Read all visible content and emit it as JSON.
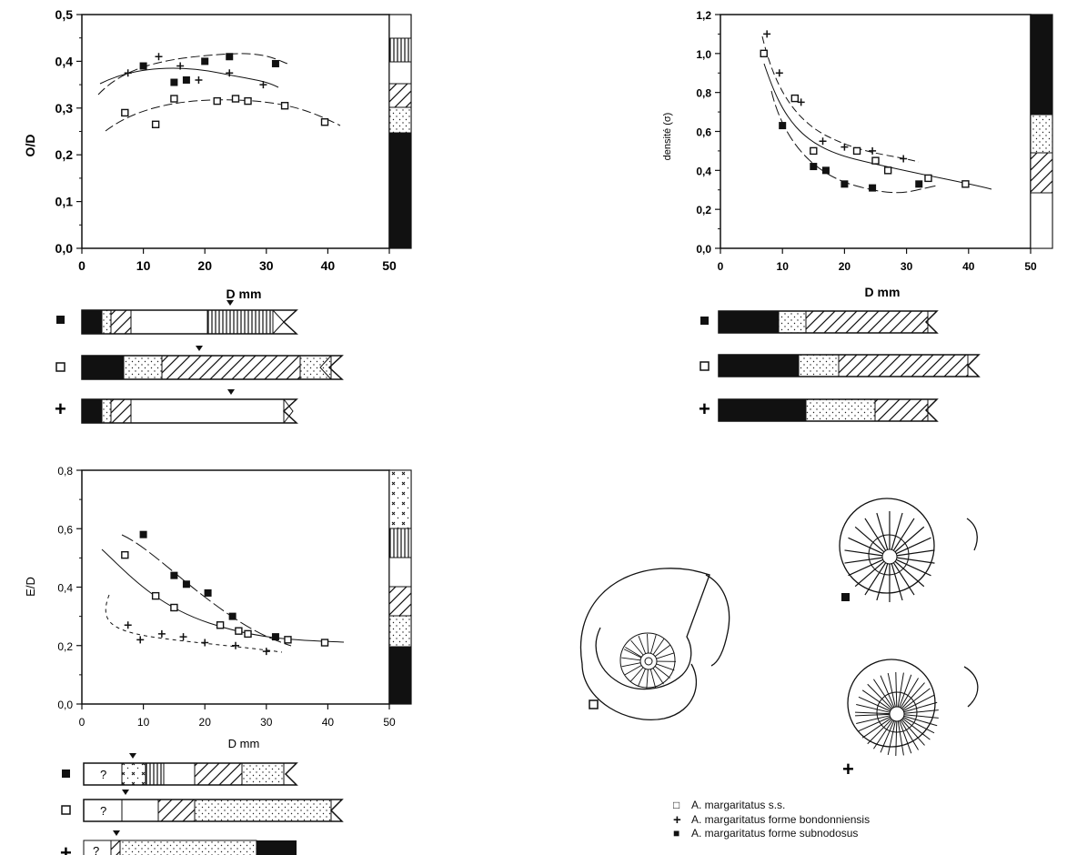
{
  "chart_data": [
    {
      "type": "scatter",
      "xlabel": "D mm",
      "ylabel": "O/D",
      "xlim": [
        0,
        50
      ],
      "ylim": [
        0,
        0.5
      ],
      "xticks": [
        "0",
        "10",
        "20",
        "30",
        "40",
        "50"
      ],
      "yticks": [
        "0,0",
        "0,1",
        "0,2",
        "0,3",
        "0,4",
        "0,5"
      ],
      "series": [
        {
          "name": "A. margaritatus forme subnodosus",
          "marker": "filled-square",
          "x": [
            10,
            15,
            17,
            20,
            24,
            31.5
          ],
          "y": [
            0.39,
            0.355,
            0.36,
            0.4,
            0.41,
            0.395
          ]
        },
        {
          "name": "A. margaritatus forme bondonniensis",
          "marker": "plus",
          "x": [
            7.5,
            12.5,
            16,
            19,
            24,
            29.5
          ],
          "y": [
            0.375,
            0.41,
            0.39,
            0.36,
            0.375,
            0.35
          ]
        },
        {
          "name": "A. margaritatus s.s.",
          "marker": "open-square",
          "x": [
            7,
            12,
            15,
            22,
            25,
            27,
            33,
            39.5
          ],
          "y": [
            0.29,
            0.265,
            0.32,
            0.315,
            0.32,
            0.315,
            0.305,
            0.27
          ]
        }
      ]
    },
    {
      "type": "scatter",
      "xlabel": "D mm",
      "ylabel": "densité (σ)",
      "xlim": [
        0,
        50
      ],
      "ylim": [
        0,
        1.2
      ],
      "xticks": [
        "0",
        "10",
        "20",
        "30",
        "40",
        "50"
      ],
      "yticks": [
        "0,0",
        "0,2",
        "0,4",
        "0,6",
        "0,8",
        "1,0",
        "1,2"
      ],
      "series": [
        {
          "name": "A. margaritatus forme bondonniensis",
          "marker": "plus",
          "x": [
            7.5,
            9.5,
            13,
            16.5,
            20,
            24.5,
            29.5
          ],
          "y": [
            1.1,
            0.9,
            0.75,
            0.55,
            0.52,
            0.5,
            0.46
          ]
        },
        {
          "name": "A. margaritatus s.s.",
          "marker": "open-square",
          "x": [
            7,
            12,
            15,
            22,
            25,
            27,
            33.5,
            39.5
          ],
          "y": [
            1.0,
            0.77,
            0.5,
            0.5,
            0.45,
            0.4,
            0.36,
            0.33
          ]
        },
        {
          "name": "A. margaritatus forme subnodosus",
          "marker": "filled-square",
          "x": [
            10,
            15,
            17,
            20,
            24.5,
            32
          ],
          "y": [
            0.63,
            0.42,
            0.4,
            0.33,
            0.31,
            0.33
          ]
        }
      ]
    },
    {
      "type": "scatter",
      "xlabel": "D mm",
      "ylabel": "E/D",
      "xlim": [
        0,
        50
      ],
      "ylim": [
        0,
        0.8
      ],
      "xticks": [
        "0",
        "10",
        "20",
        "30",
        "40",
        "50"
      ],
      "yticks": [
        "0,0",
        "0,2",
        "0,4",
        "0,6",
        "0,8"
      ],
      "series": [
        {
          "name": "A. margaritatus forme subnodosus",
          "marker": "filled-square",
          "x": [
            10,
            15,
            17,
            20.5,
            24.5,
            31.5
          ],
          "y": [
            0.58,
            0.44,
            0.41,
            0.38,
            0.3,
            0.23
          ]
        },
        {
          "name": "A. margaritatus s.s.",
          "marker": "open-square",
          "x": [
            7,
            12,
            15,
            22.5,
            25.5,
            27,
            33.5,
            39.5
          ],
          "y": [
            0.51,
            0.37,
            0.33,
            0.27,
            0.25,
            0.24,
            0.22,
            0.21
          ]
        },
        {
          "name": "A. margaritatus forme bondonniensis",
          "marker": "plus",
          "x": [
            7.5,
            9.5,
            13,
            16.5,
            20,
            25,
            30
          ],
          "y": [
            0.27,
            0.22,
            0.24,
            0.23,
            0.21,
            0.2,
            0.18
          ]
        }
      ]
    }
  ],
  "bar_labels": {
    "question": "?"
  },
  "drawing_labels": {
    "open": "□",
    "filled": "■",
    "plus": "+"
  },
  "legend": [
    {
      "symbol": "□",
      "label": "A. margaritatus s.s."
    },
    {
      "symbol": "+",
      "label": "A. margaritatus forme bondonniensis"
    },
    {
      "symbol": "■",
      "label": "A. margaritatus forme subnodosus"
    }
  ]
}
